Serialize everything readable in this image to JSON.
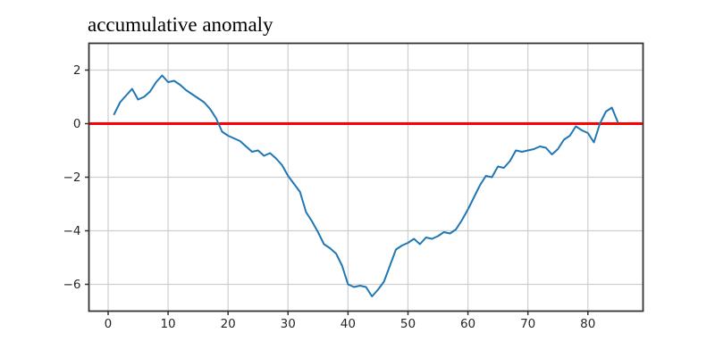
{
  "figure": {
    "background": "#ffffff"
  },
  "chart_data": {
    "type": "line",
    "title": "accumulative anomaly",
    "xlabel": "",
    "ylabel": "",
    "grid": true,
    "legend": "none",
    "xlim": [
      -3.2,
      89.2
    ],
    "ylim": [
      -7,
      3
    ],
    "xticks": [
      0,
      10,
      20,
      30,
      40,
      50,
      60,
      70,
      80
    ],
    "xtick_labels": [
      "0",
      "10",
      "20",
      "30",
      "40",
      "50",
      "60",
      "70",
      "80"
    ],
    "yticks": [
      2,
      0,
      -2,
      -4,
      -6
    ],
    "ytick_labels": [
      "2",
      "0",
      "−2",
      "−4",
      "−6"
    ],
    "x_start": 1,
    "x_step": 1,
    "series": [
      {
        "name": "accumulative anomaly",
        "color": "#1f77b4",
        "values": [
          0.35,
          0.8,
          1.05,
          1.3,
          0.9,
          1.0,
          1.2,
          1.55,
          1.8,
          1.55,
          1.6,
          1.45,
          1.25,
          1.1,
          0.95,
          0.8,
          0.55,
          0.2,
          -0.3,
          -0.45,
          -0.55,
          -0.65,
          -0.85,
          -1.05,
          -1.0,
          -1.2,
          -1.1,
          -1.3,
          -1.55,
          -1.95,
          -2.25,
          -2.55,
          -3.3,
          -3.65,
          -4.05,
          -4.5,
          -4.65,
          -4.85,
          -5.3,
          -6.0,
          -6.1,
          -6.05,
          -6.1,
          -6.45,
          -6.2,
          -5.9,
          -5.3,
          -4.7,
          -4.55,
          -4.45,
          -4.3,
          -4.5,
          -4.25,
          -4.3,
          -4.2,
          -4.05,
          -4.1,
          -3.95,
          -3.6,
          -3.2,
          -2.75,
          -2.3,
          -1.95,
          -2.0,
          -1.6,
          -1.65,
          -1.4,
          -1.0,
          -1.05,
          -1.0,
          -0.95,
          -0.85,
          -0.9,
          -1.15,
          -0.95,
          -0.6,
          -0.45,
          -0.1,
          -0.25,
          -0.35,
          -0.7,
          0.0,
          0.45,
          0.6,
          0.05
        ]
      }
    ],
    "reference_line": {
      "y": 0,
      "color": "#ff0000"
    }
  },
  "colors": {
    "grid": "#cfcfcf",
    "axis": "#333333",
    "tick_label": "#262626",
    "series_line": "#1f77b4",
    "zero_line": "#ff0000"
  }
}
